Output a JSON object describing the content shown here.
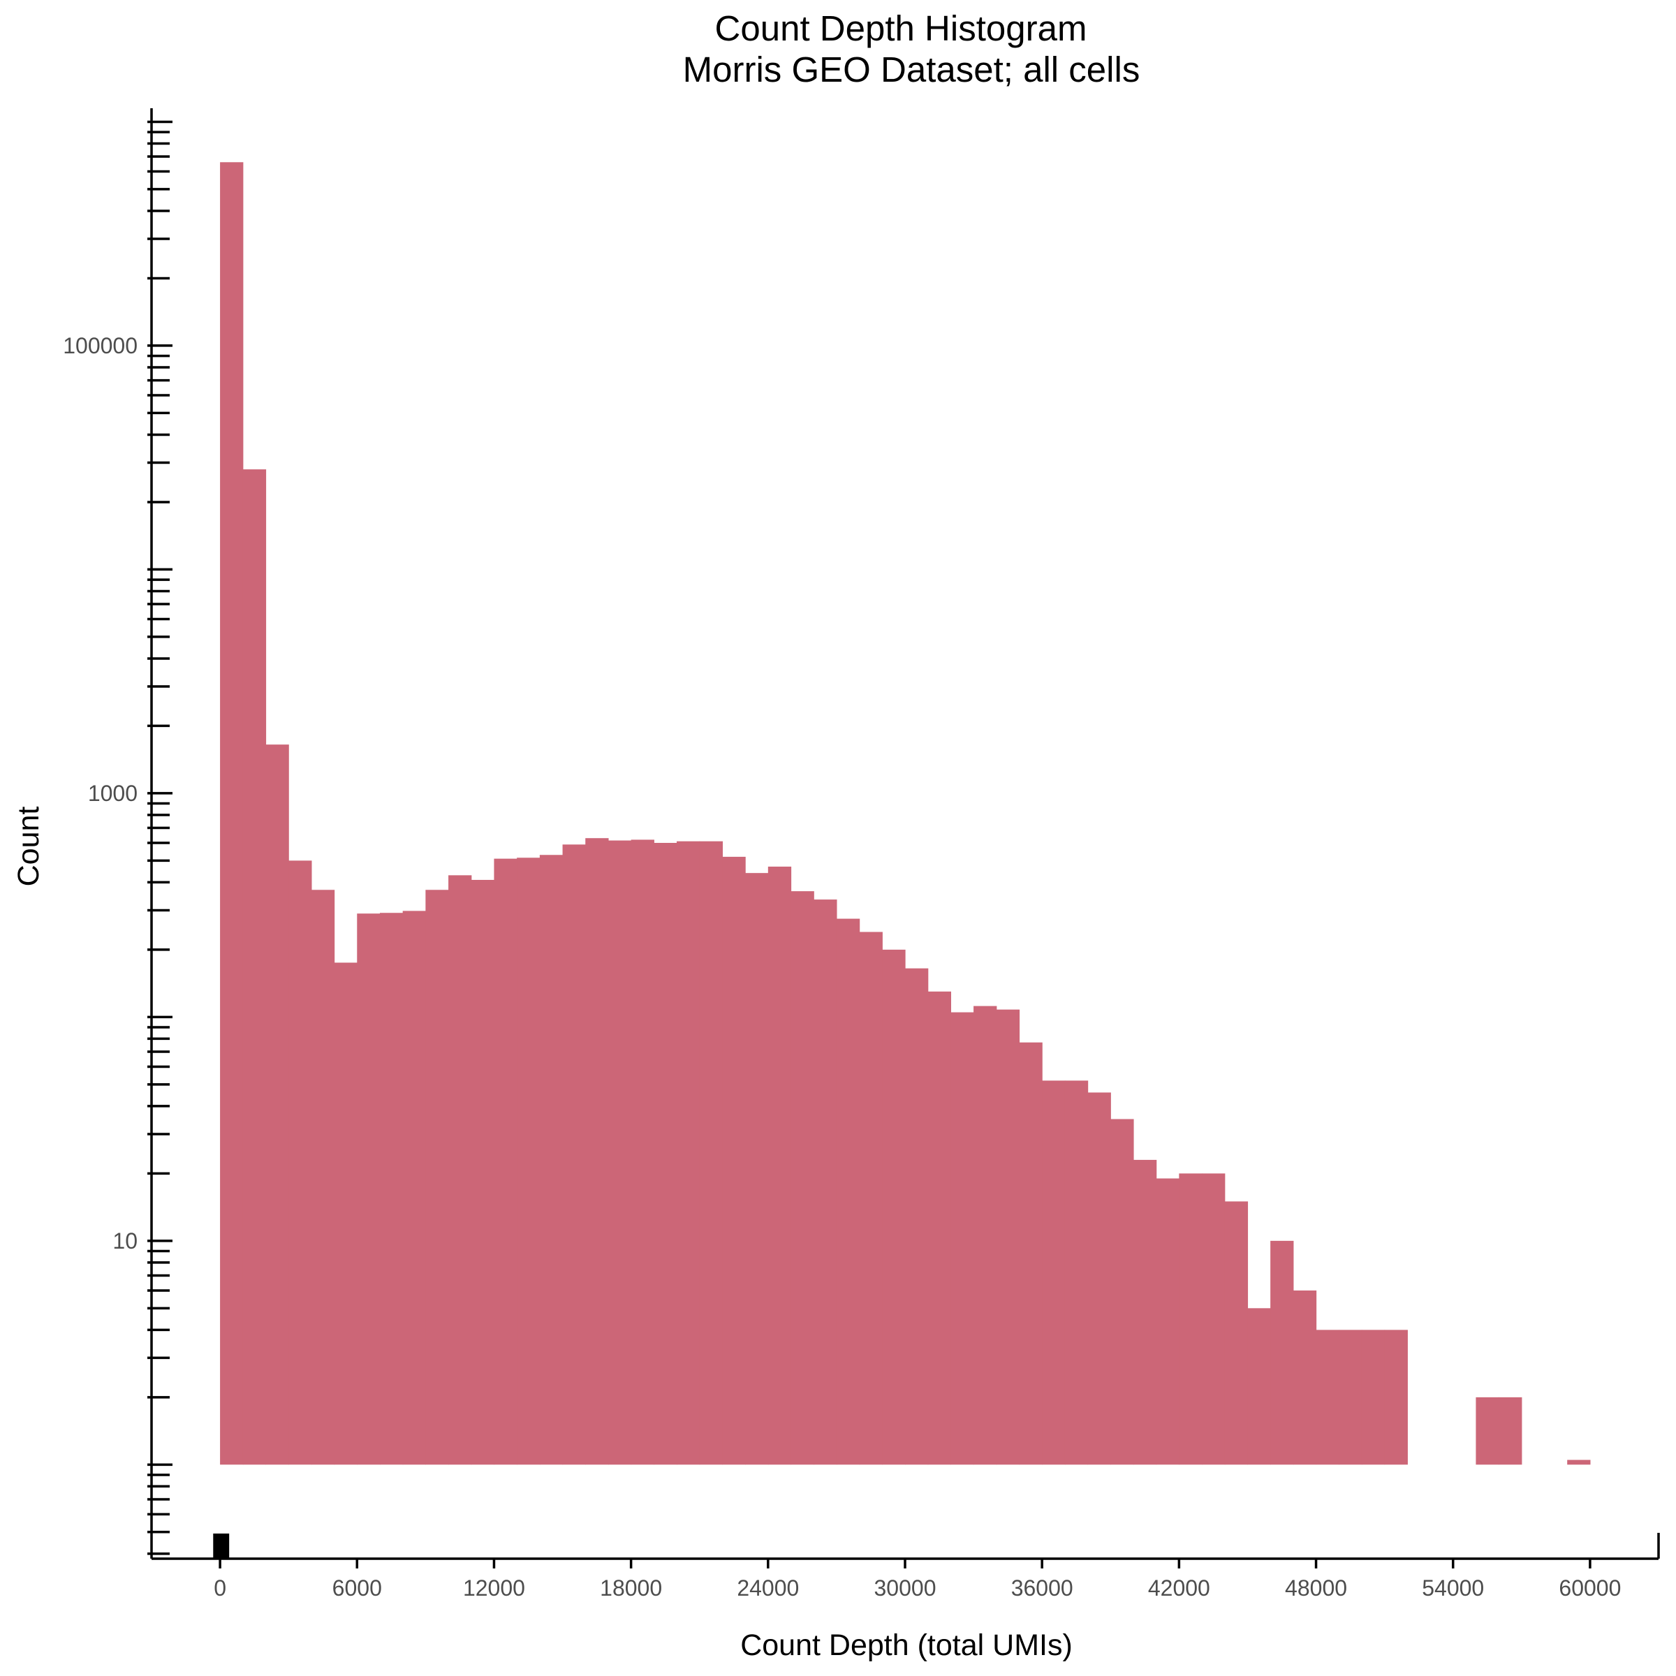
{
  "chart_data": {
    "type": "bar",
    "title": "Count Depth Histogram",
    "subtitle": "Morris GEO Dataset; all cells",
    "xlabel": "Count Depth (total UMIs)",
    "ylabel": "Count",
    "bar_color": "#cc6677",
    "y_scale": "log10",
    "x_range": [
      -3000,
      63000
    ],
    "y_range": [
      0.38,
      1150000
    ],
    "x_ticks": [
      0,
      6000,
      12000,
      18000,
      24000,
      30000,
      36000,
      42000,
      48000,
      54000,
      60000
    ],
    "x_tick_labels": [
      "0",
      "6000",
      "12000",
      "18000",
      "24000",
      "30000",
      "36000",
      "42000",
      "48000",
      "54000",
      "60000"
    ],
    "y_ticks": [
      10,
      1000,
      100000
    ],
    "y_tick_labels": [
      "10",
      "1000",
      "100000"
    ],
    "bin_width": 1000,
    "baseline": 1,
    "bins_start": [
      0,
      1000,
      2000,
      3000,
      4000,
      5000,
      6000,
      7000,
      8000,
      9000,
      10000,
      11000,
      12000,
      13000,
      14000,
      15000,
      16000,
      17000,
      18000,
      19000,
      20000,
      21000,
      22000,
      23000,
      24000,
      25000,
      26000,
      27000,
      28000,
      29000,
      30000,
      31000,
      32000,
      33000,
      34000,
      35000,
      36000,
      37000,
      38000,
      39000,
      40000,
      41000,
      42000,
      43000,
      44000,
      45000,
      46000,
      47000,
      48000,
      49000,
      50000,
      51000,
      52000,
      53000,
      54000,
      55000,
      56000,
      57000,
      58000,
      59000
    ],
    "values": [
      660000,
      28000,
      1650,
      500,
      370,
      175,
      290,
      292,
      298,
      370,
      430,
      410,
      510,
      515,
      530,
      590,
      630,
      615,
      620,
      600,
      610,
      610,
      520,
      440,
      470,
      365,
      335,
      275,
      240,
      200,
      165,
      130,
      105,
      112,
      108,
      77,
      52,
      52,
      46,
      35,
      23,
      19,
      20,
      20,
      15,
      5,
      10,
      6,
      4,
      4,
      4,
      4,
      0,
      0,
      0,
      2,
      2,
      0,
      0,
      1.05
    ],
    "rug_marker": {
      "x_start": -300,
      "x_end": 400
    }
  }
}
